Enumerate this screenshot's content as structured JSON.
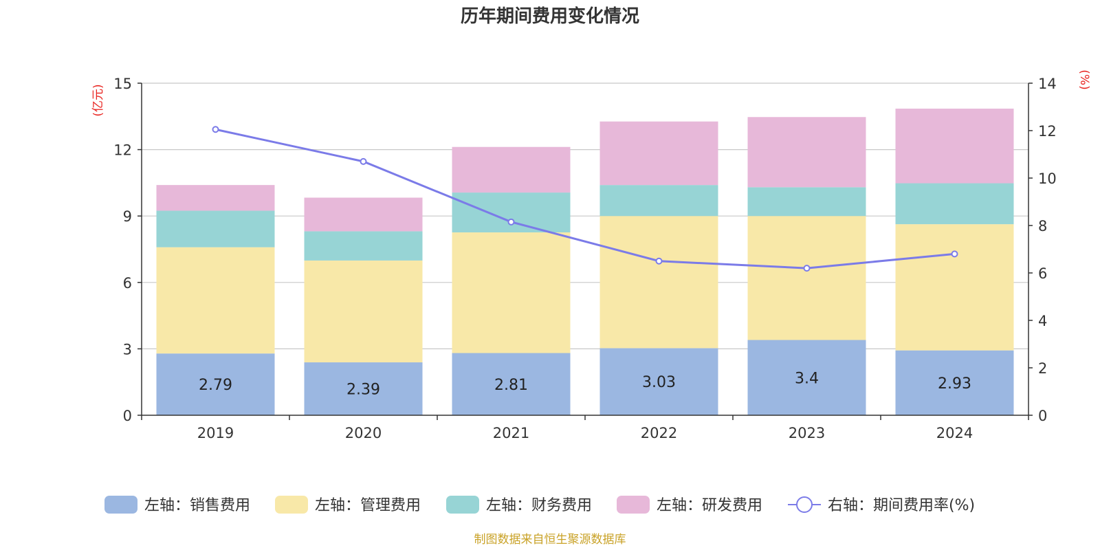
{
  "chart_data": {
    "type": "bar",
    "title": "历年期间费用变化情况",
    "categories": [
      "2019",
      "2020",
      "2021",
      "2022",
      "2023",
      "2024"
    ],
    "y_left": {
      "unit": "(亿元)",
      "min": 0,
      "max": 15,
      "ticks": [
        "0",
        "3",
        "6",
        "9",
        "12",
        "15"
      ]
    },
    "y_right": {
      "unit": "(%)",
      "min": 0,
      "max": 14,
      "ticks": [
        "0",
        "2",
        "4",
        "6",
        "8",
        "10",
        "12",
        "14"
      ]
    },
    "stacked": true,
    "series": [
      {
        "name": "左轴：销售费用",
        "axis": "left",
        "type": "bar",
        "color": "#9bb7e1",
        "values": [
          2.79,
          2.39,
          2.81,
          3.03,
          3.4,
          2.93
        ],
        "labels": [
          "2.79",
          "2.39",
          "2.81",
          "3.03",
          "3.4",
          "2.93"
        ]
      },
      {
        "name": "左轴：管理费用",
        "axis": "left",
        "type": "bar",
        "color": "#f8e8a8",
        "values": [
          4.8,
          4.6,
          5.45,
          5.97,
          5.6,
          5.7
        ]
      },
      {
        "name": "左轴：财务费用",
        "axis": "left",
        "type": "bar",
        "color": "#97d4d5",
        "values": [
          1.65,
          1.32,
          1.8,
          1.4,
          1.3,
          1.85
        ]
      },
      {
        "name": "左轴：研发费用",
        "axis": "left",
        "type": "bar",
        "color": "#e7b8d9",
        "values": [
          1.16,
          1.52,
          2.06,
          2.87,
          3.17,
          3.37
        ]
      },
      {
        "name": "右轴：期间费用率(%)",
        "axis": "right",
        "type": "line",
        "color": "#7b7be8",
        "values": [
          12.05,
          10.7,
          8.15,
          6.5,
          6.2,
          6.8
        ]
      }
    ],
    "grid": true,
    "legend_position": "bottom",
    "source": "制图数据来自恒生聚源数据库"
  }
}
